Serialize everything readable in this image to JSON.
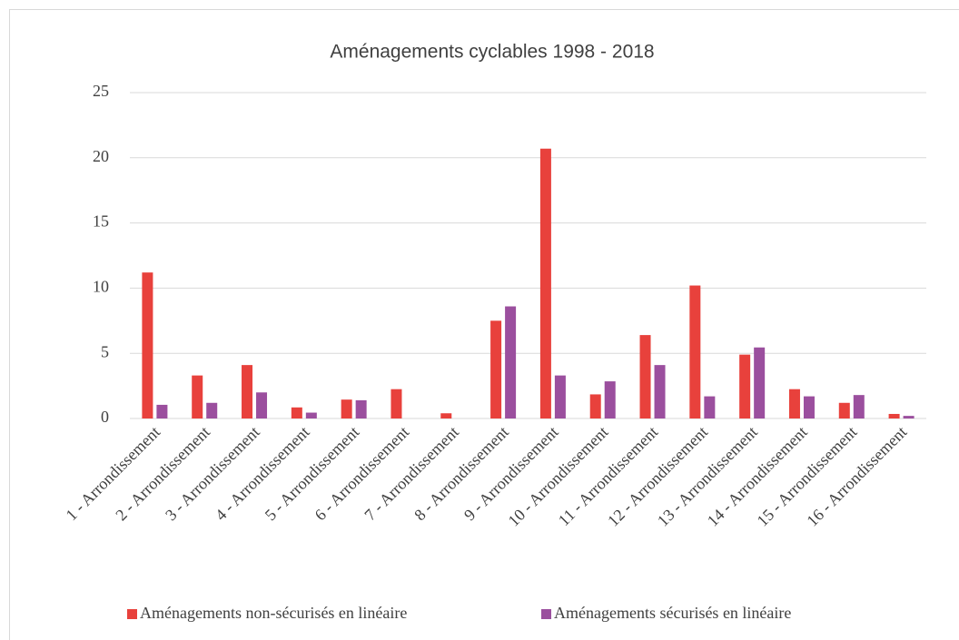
{
  "chart_data": {
    "type": "bar",
    "title": "Aménagements cyclables 1998 - 2018",
    "categories": [
      "1 - Arrondissement",
      "2 - Arrondissement",
      "3 - Arrondissement",
      "4 - Arrondissement",
      "5 - Arrondissement",
      "6 - Arrondissement",
      "7 - Arrondissement",
      "8 - Arrondissement",
      "9 - Arrondissement",
      "10 - Arrondissement",
      "11 - Arrondissement",
      "12 - Arrondissement",
      "13 - Arrondissement",
      "14 - Arrondissement",
      "15 - Arrondissement",
      "16 - Arrondissement"
    ],
    "series": [
      {
        "name": "Aménagements non-sécurisés en linéaire",
        "color": "#e8413c",
        "values": [
          11.2,
          3.3,
          4.1,
          0.85,
          1.45,
          2.25,
          0.4,
          7.5,
          20.7,
          1.85,
          6.4,
          10.2,
          4.9,
          2.25,
          1.2,
          0.35
        ]
      },
      {
        "name": "Aménagements sécurisés en linéaire",
        "color": "#9b4f9e",
        "values": [
          1.05,
          1.2,
          2.0,
          0.45,
          1.4,
          0,
          0,
          8.6,
          3.3,
          2.85,
          4.1,
          1.7,
          5.45,
          1.7,
          1.8,
          0.2
        ]
      }
    ],
    "ylim": [
      0,
      25
    ],
    "yticks": [
      0,
      5,
      10,
      15,
      20,
      25
    ],
    "grid": true,
    "legend": "bottom"
  }
}
